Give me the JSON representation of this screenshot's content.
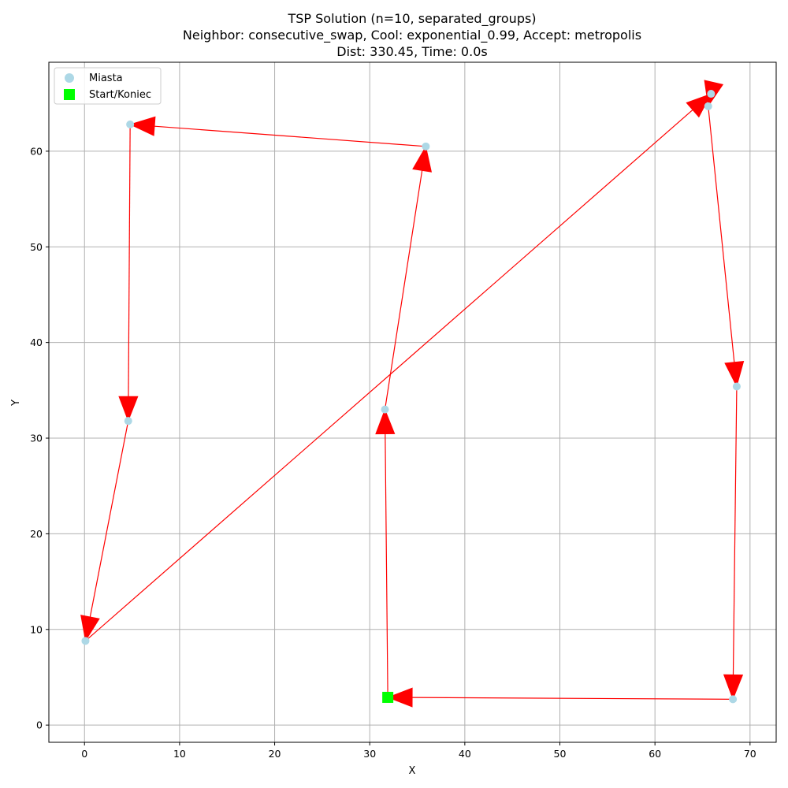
{
  "chart_data": {
    "type": "scatter",
    "title_lines": [
      "TSP Solution (n=10, separated_groups)",
      "Neighbor: consecutive_swap, Cool: exponential_0.99, Accept: metropolis",
      "Dist: 330.45, Time: 0.0s"
    ],
    "xlabel": "X",
    "ylabel": "Y",
    "xlim": [
      -3.75,
      72.75
    ],
    "ylim": [
      -1.8,
      69.3
    ],
    "xticks": [
      0,
      10,
      20,
      30,
      40,
      50,
      60,
      70
    ],
    "yticks": [
      0,
      10,
      20,
      30,
      40,
      50,
      60
    ],
    "grid": true,
    "legend": {
      "placement": "top-left",
      "entries": [
        {
          "label": "Miasta",
          "color": "#add8e6",
          "marker": "circle"
        },
        {
          "label": "Start/Koniec",
          "color": "#00ff00",
          "marker": "square"
        }
      ]
    },
    "series": [
      {
        "name": "Miasta",
        "color": "#add8e6",
        "points": [
          {
            "x": 31.9,
            "y": 2.9
          },
          {
            "x": 31.6,
            "y": 33.0
          },
          {
            "x": 35.9,
            "y": 60.5
          },
          {
            "x": 4.8,
            "y": 62.8
          },
          {
            "x": 4.6,
            "y": 31.8
          },
          {
            "x": 0.1,
            "y": 8.8
          },
          {
            "x": 65.9,
            "y": 66.0
          },
          {
            "x": 65.6,
            "y": 64.7
          },
          {
            "x": 68.6,
            "y": 35.4
          },
          {
            "x": 68.2,
            "y": 2.7
          }
        ]
      },
      {
        "name": "Start/Koniec",
        "color": "#00ff00",
        "points": [
          {
            "x": 31.9,
            "y": 2.9
          }
        ]
      }
    ],
    "route": {
      "color": "#ff0000",
      "order": [
        {
          "x": 31.9,
          "y": 2.9
        },
        {
          "x": 31.6,
          "y": 33.0
        },
        {
          "x": 35.9,
          "y": 60.5
        },
        {
          "x": 4.8,
          "y": 62.8
        },
        {
          "x": 4.6,
          "y": 31.8
        },
        {
          "x": 0.1,
          "y": 8.8
        },
        {
          "x": 65.9,
          "y": 66.0
        },
        {
          "x": 65.6,
          "y": 64.7
        },
        {
          "x": 68.6,
          "y": 35.4
        },
        {
          "x": 68.2,
          "y": 2.7
        },
        {
          "x": 31.9,
          "y": 2.9
        }
      ]
    }
  }
}
